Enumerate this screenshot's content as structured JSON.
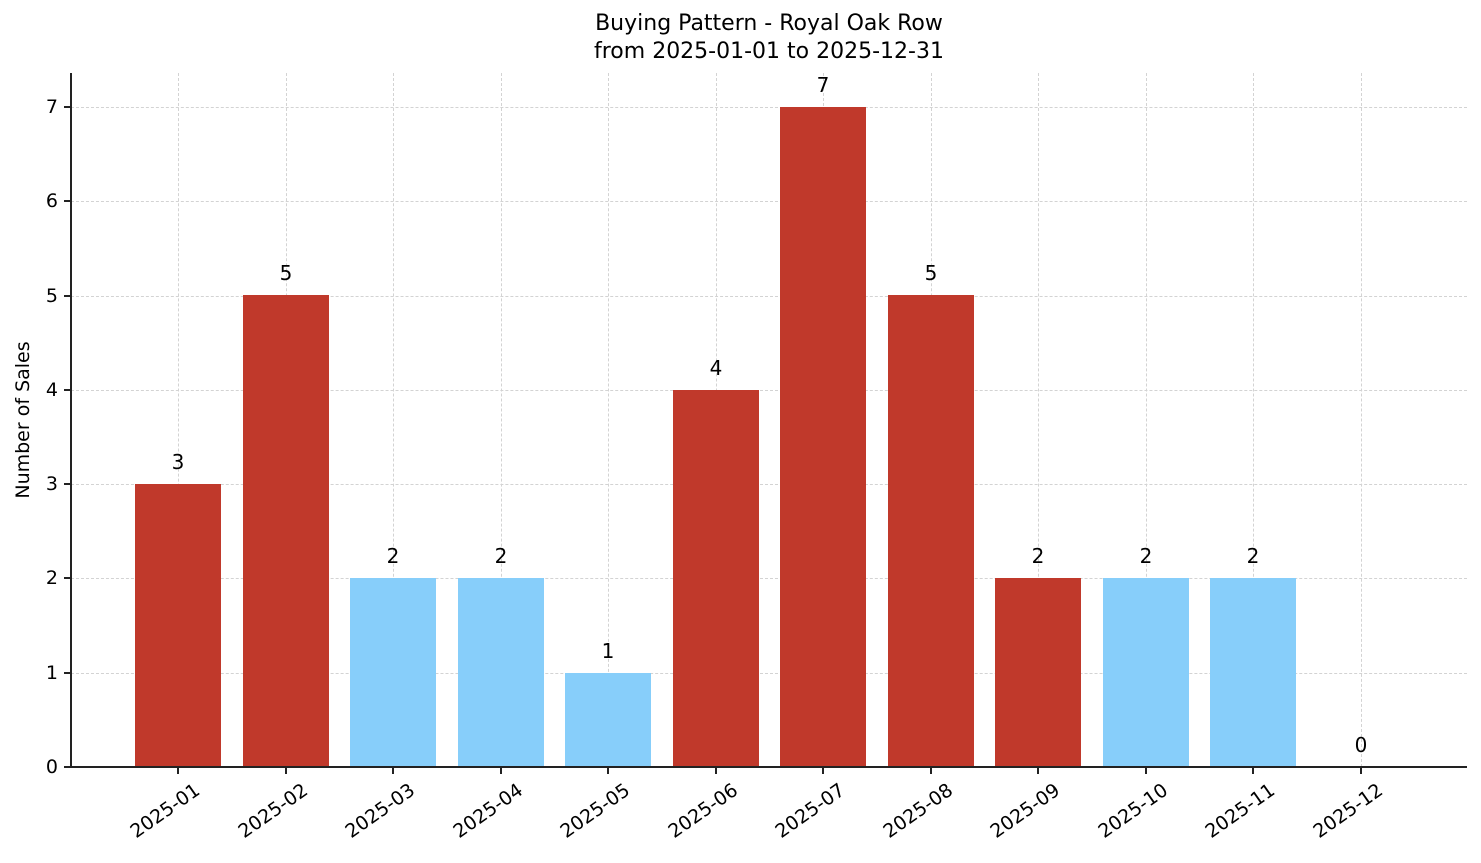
{
  "chart_data": {
    "type": "bar",
    "title": "Buying Pattern - Royal Oak Row",
    "subtitle": "from 2025-01-01 to 2025-12-31",
    "xlabel": "",
    "ylabel": "Number of Sales",
    "ylim": [
      0,
      7.35
    ],
    "yticks": [
      0,
      1,
      2,
      3,
      4,
      5,
      6,
      7
    ],
    "grid": true,
    "legend": null,
    "categories": [
      "2025-01",
      "2025-02",
      "2025-03",
      "2025-04",
      "2025-05",
      "2025-06",
      "2025-07",
      "2025-08",
      "2025-09",
      "2025-10",
      "2025-11",
      "2025-12"
    ],
    "values": [
      3,
      5,
      2,
      2,
      1,
      4,
      7,
      5,
      2,
      2,
      2,
      0
    ],
    "bar_colors": [
      "#c0392b",
      "#c0392b",
      "#87cefa",
      "#87cefa",
      "#87cefa",
      "#c0392b",
      "#c0392b",
      "#c0392b",
      "#c0392b",
      "#87cefa",
      "#87cefa",
      "#c0392b"
    ],
    "colors": {
      "high": "#c0392b",
      "low": "#87cefa"
    }
  }
}
